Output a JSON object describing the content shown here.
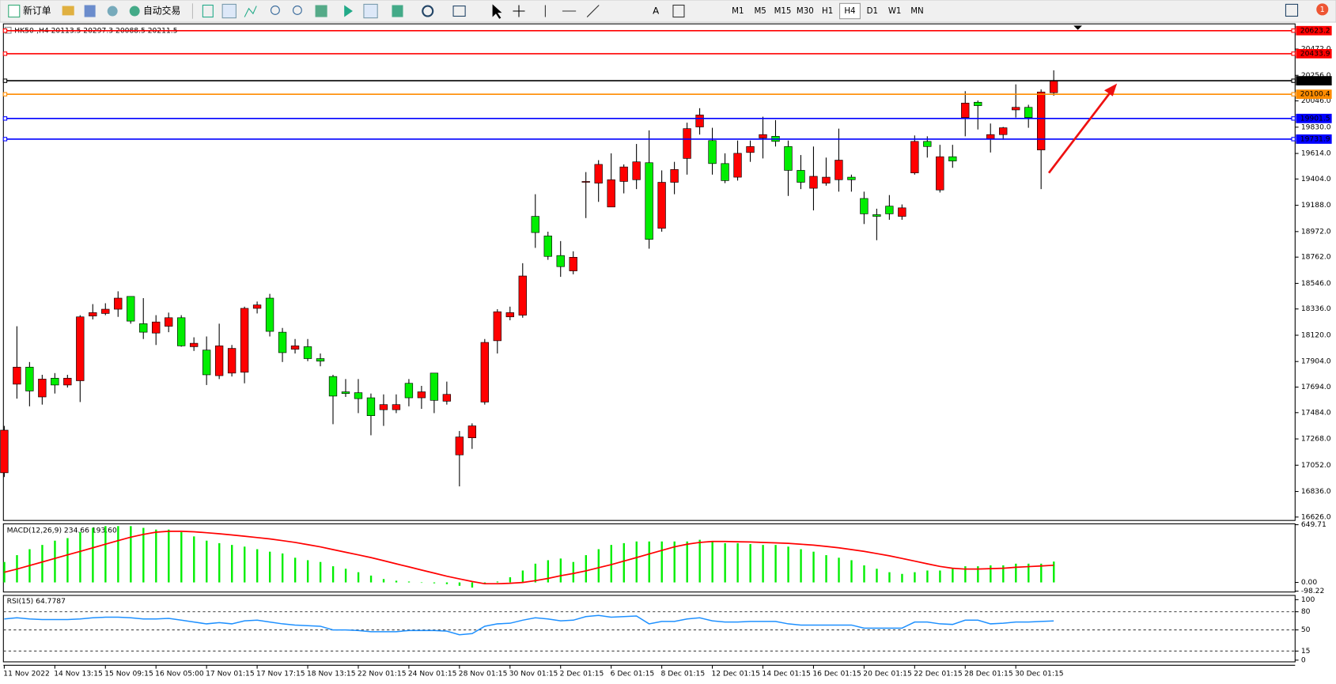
{
  "toolbar": {
    "new_order": "新订单",
    "auto_trading": "自动交易",
    "text_tool": "A",
    "timeframes": [
      "M1",
      "M5",
      "M15",
      "M30",
      "H1",
      "H4",
      "D1",
      "W1",
      "MN"
    ],
    "selected": "H4",
    "notification_count": 1
  },
  "chart_data": [
    {
      "type": "candlestick",
      "title": "HK50-,H4  20113.5 20297.3 20088.5 20211.5",
      "categories": [
        "11 Nov 2022",
        null,
        null,
        null,
        "14 Nov 13:15",
        null,
        null,
        null,
        "15 Nov 09:15",
        null,
        null,
        null,
        "16 Nov 05:00",
        null,
        null,
        null,
        "17 Nov 01:15",
        null,
        null,
        null,
        "17 Nov 17:15",
        null,
        null,
        null,
        "18 Nov 13:15",
        null,
        null,
        null,
        "22 Nov 01:15",
        null,
        null,
        null,
        "24 Nov 01:15",
        null,
        null,
        null,
        "28 Nov 01:15",
        null,
        null,
        null,
        "30 Nov 01:15",
        null,
        null,
        null,
        "2 Dec 01:15",
        null,
        null,
        null,
        "6 Dec 01:15",
        null,
        null,
        null,
        "8 Dec 01:15",
        null,
        null,
        null,
        "12 Dec 01:15",
        null,
        null,
        null,
        "14 Dec 01:15",
        null,
        null,
        null,
        "16 Dec 01:15",
        null,
        null,
        null,
        "20 Dec 01:15",
        null,
        null,
        null,
        "22 Dec 01:15",
        null,
        null,
        null,
        "28 Dec 01:15",
        null,
        null,
        null,
        "30 Dec 01:15",
        null,
        null,
        null
      ],
      "open": [
        16990,
        17718,
        17858,
        17613,
        17767,
        17711,
        17746,
        18278,
        18299,
        18334,
        18439,
        18215,
        18138,
        18194,
        18264,
        18026,
        17998,
        17788,
        17809,
        17816,
        18341,
        18425,
        18145,
        18005,
        18026,
        17928,
        17781,
        17655,
        17648,
        17606,
        17508,
        17508,
        17725,
        17606,
        17809,
        17578,
        17137,
        17277,
        17571,
        18075,
        18271,
        18285,
        19097,
        18936,
        18775,
        18649,
        19377,
        19370,
        19174,
        19384,
        19398,
        19538,
        18999,
        19377,
        19573,
        19832,
        19720,
        19531,
        19419,
        19622,
        19741,
        19755,
        19671,
        19475,
        19328,
        19370,
        19398,
        19419,
        19244,
        19111,
        19181,
        19097,
        19454,
        19713,
        19314,
        19587,
        19909,
        20035,
        19734,
        19769,
        19972,
        19993,
        19643,
        20113.5
      ],
      "high": [
        17375,
        18194,
        17900,
        17795,
        17809,
        17795,
        18285,
        18376,
        18383,
        18481,
        18439,
        18425,
        18285,
        18306,
        18285,
        18103,
        18110,
        18215,
        18040,
        18355,
        18397,
        18460,
        18180,
        18089,
        18089,
        17970,
        17795,
        17760,
        17760,
        17641,
        17634,
        17634,
        17760,
        17704,
        17809,
        17739,
        17333,
        17396,
        18089,
        18334,
        18355,
        18712,
        19279,
        18971,
        18894,
        18810,
        19461,
        19559,
        19615,
        19524,
        19692,
        19804,
        19475,
        19545,
        19867,
        19986,
        19825,
        19615,
        19720,
        19720,
        19916,
        19888,
        19720,
        19601,
        19671,
        19580,
        19818,
        19440,
        19300,
        19160,
        19272,
        19195,
        19762,
        19755,
        19685,
        19685,
        20126,
        20049,
        19860,
        19832,
        20182,
        20014,
        20140,
        20297.3
      ],
      "low": [
        16955,
        17599,
        17536,
        17550,
        17641,
        17690,
        17571,
        18250,
        18285,
        18271,
        18215,
        18089,
        18040,
        18145,
        18026,
        17991,
        17711,
        17760,
        17781,
        17725,
        18299,
        18110,
        17900,
        17970,
        17907,
        17865,
        17389,
        17613,
        17480,
        17298,
        17375,
        17480,
        17536,
        17515,
        17480,
        17550,
        16878,
        17186,
        17550,
        17970,
        18243,
        18264,
        18838,
        18740,
        18600,
        18621,
        19083,
        19216,
        19174,
        19286,
        19321,
        18831,
        18971,
        19279,
        19440,
        19769,
        19440,
        19370,
        19391,
        19545,
        19573,
        19671,
        19265,
        19321,
        19146,
        19349,
        19300,
        19300,
        19034,
        18901,
        19069,
        19069,
        19440,
        19580,
        19293,
        19496,
        19755,
        19811,
        19622,
        19727,
        19909,
        19825,
        19321,
        20088.5
      ],
      "close": [
        17340,
        17858,
        17662,
        17760,
        17711,
        17767,
        18271,
        18306,
        18334,
        18425,
        18236,
        18145,
        18229,
        18264,
        18033,
        18054,
        17795,
        18033,
        18012,
        18341,
        18369,
        18152,
        17977,
        18033,
        17928,
        17907,
        17620,
        17641,
        17599,
        17459,
        17550,
        17550,
        17606,
        17655,
        17585,
        17634,
        17284,
        17375,
        18061,
        18313,
        18306,
        18607,
        18964,
        18768,
        18684,
        18761,
        19384,
        19524,
        19398,
        19503,
        19545,
        18908,
        19377,
        19482,
        19818,
        19930,
        19531,
        19391,
        19615,
        19671,
        19769,
        19713,
        19475,
        19377,
        19426,
        19419,
        19559,
        19398,
        19118,
        19097,
        19118,
        19167,
        19713,
        19671,
        19587,
        19552,
        20028,
        20007,
        19769,
        19825,
        19993,
        19909,
        20119,
        20211.5
      ],
      "up_color": "#ff0000",
      "down_color": "#00ee00",
      "ylim": [
        16598,
        20679
      ],
      "yticks": [
        {
          "value": 16626,
          "label": "16626.0"
        },
        {
          "value": 16836,
          "label": "16836.0"
        },
        {
          "value": 17052,
          "label": "17052.0"
        },
        {
          "value": 17268,
          "label": "17268.0"
        },
        {
          "value": 17484,
          "label": "17484.0"
        },
        {
          "value": 17694,
          "label": "17694.0"
        },
        {
          "value": 17904,
          "label": "17904.0"
        },
        {
          "value": 18120,
          "label": "18120.0"
        },
        {
          "value": 18336,
          "label": "18336.0"
        },
        {
          "value": 18546,
          "label": "18546.0"
        },
        {
          "value": 18762,
          "label": "18762.0"
        },
        {
          "value": 18972,
          "label": "18972.0"
        },
        {
          "value": 19188,
          "label": "19188.0"
        },
        {
          "value": 19404,
          "label": "19404.0"
        },
        {
          "value": 19614,
          "label": "19614.0"
        },
        {
          "value": 19830,
          "label": "19830.0"
        },
        {
          "value": 20046,
          "label": "20046.0"
        },
        {
          "value": 20256,
          "label": "20256.0"
        },
        {
          "value": 20472,
          "label": "20472.0"
        }
      ],
      "levels": [
        {
          "value": 20623.2,
          "color": "#ff0000"
        },
        {
          "value": 20433.9,
          "color": "#ff0000"
        },
        {
          "value": 20211.5,
          "color": "#000000"
        },
        {
          "value": 20100.4,
          "color": "#ff8c00"
        },
        {
          "value": 19901.5,
          "color": "#0000ff"
        },
        {
          "value": 19731.9,
          "color": "#0000ff"
        }
      ]
    },
    {
      "type": "macd",
      "title": "MACD(12,26,9) 234.66 193.60",
      "values": [
        230,
        307,
        374,
        422,
        470,
        499,
        566,
        614,
        634,
        634,
        634,
        614,
        595,
        595,
        566,
        518,
        470,
        442,
        422,
        403,
        374,
        346,
        326,
        278,
        250,
        230,
        182,
        154,
        115,
        77,
        38,
        19,
        10,
        0,
        -10,
        -19,
        -38,
        -58,
        -19,
        10,
        58,
        134,
        211,
        250,
        269,
        230,
        307,
        374,
        422,
        442,
        461,
        461,
        461,
        461,
        461,
        480,
        461,
        442,
        442,
        432,
        422,
        422,
        403,
        374,
        346,
        307,
        278,
        250,
        192,
        154,
        115,
        96,
        115,
        134,
        134,
        154,
        182,
        182,
        192,
        192,
        211,
        211,
        211,
        234.66
      ],
      "color": "#00ee00",
      "signal": [
        115,
        150,
        190,
        230,
        270,
        310,
        350,
        390,
        430,
        470,
        510,
        540,
        565,
        576,
        576,
        570,
        560,
        548,
        535,
        520,
        505,
        490,
        470,
        450,
        425,
        400,
        370,
        340,
        310,
        280,
        245,
        210,
        175,
        140,
        105,
        70,
        40,
        10,
        -15,
        -15,
        -10,
        0,
        20,
        45,
        75,
        100,
        130,
        165,
        200,
        240,
        280,
        320,
        360,
        400,
        430,
        450,
        461,
        461,
        458,
        455,
        450,
        445,
        440,
        430,
        420,
        405,
        390,
        370,
        350,
        325,
        300,
        270,
        240,
        210,
        180,
        160,
        150,
        150,
        155,
        160,
        170,
        178,
        185,
        193.6
      ],
      "signal_color": "#ff0000",
      "ylim": [
        -98.22,
        649.71
      ],
      "yticks": [
        -98.22,
        {
          "value": 0,
          "label": "0.00"
        },
        649.71
      ]
    },
    {
      "type": "line",
      "title": "RSI(15) 64.7787",
      "values": [
        68,
        70,
        68,
        67,
        67,
        67,
        68,
        70,
        71,
        71,
        70,
        68,
        68,
        69,
        66,
        63,
        60,
        62,
        60,
        65,
        66,
        63,
        60,
        58,
        57,
        56,
        50,
        50,
        49,
        47,
        47,
        47,
        49,
        49,
        49,
        48,
        42,
        44,
        56,
        60,
        61,
        66,
        70,
        68,
        65,
        66,
        72,
        74,
        71,
        72,
        73,
        60,
        64,
        64,
        68,
        70,
        65,
        63,
        63,
        64,
        64,
        64,
        60,
        58,
        58,
        58,
        58,
        58,
        53,
        53,
        53,
        53,
        63,
        63,
        60,
        59,
        66,
        66,
        60,
        61,
        63,
        63,
        64,
        64.7787
      ],
      "color": "#1e90ff",
      "ylim": [
        0,
        100
      ],
      "yticks": [
        0,
        15,
        50,
        80,
        100
      ]
    }
  ]
}
